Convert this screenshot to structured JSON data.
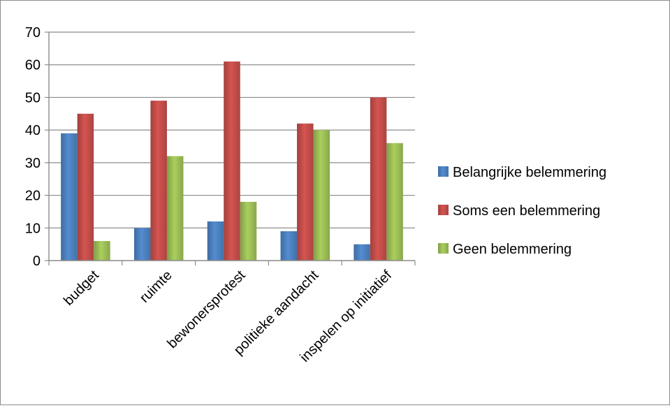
{
  "chart_data": {
    "type": "bar",
    "title": "",
    "xlabel": "",
    "ylabel": "",
    "categories": [
      "budget",
      "ruimte",
      "bewonersprotest",
      "politieke aandacht",
      "inspelen op initiatief"
    ],
    "series": [
      {
        "name": "Belangrijke belemmering",
        "color": "#4a7ebb",
        "values": [
          39,
          10,
          12,
          9,
          5
        ]
      },
      {
        "name": "Soms een belemmering",
        "color": "#be4b48",
        "values": [
          45,
          49,
          61,
          42,
          50
        ]
      },
      {
        "name": "Geen belemmering",
        "color": "#98b954",
        "values": [
          6,
          32,
          18,
          40,
          36
        ]
      }
    ],
    "ylim": [
      0,
      70
    ],
    "yticks": [
      0,
      10,
      20,
      30,
      40,
      50,
      60,
      70
    ],
    "grid": true,
    "legend_position": "right"
  }
}
